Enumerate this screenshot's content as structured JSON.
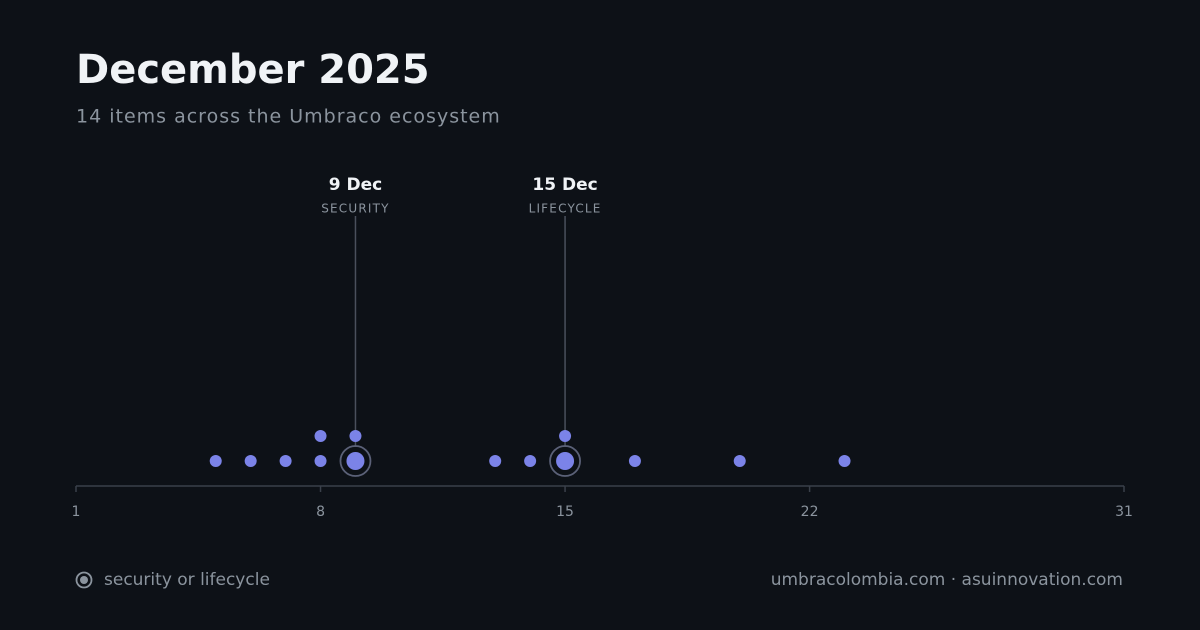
{
  "chart_data": {
    "type": "strip",
    "title": "December 2025",
    "subtitle": "14 items across the Umbraco ecosystem",
    "x": [
      5,
      6,
      7,
      8,
      8,
      9,
      9,
      13,
      14,
      15,
      15,
      17,
      20,
      23
    ],
    "highlight": [
      false,
      false,
      false,
      false,
      false,
      true,
      false,
      false,
      false,
      true,
      false,
      false,
      false,
      false
    ],
    "color": "#7b83e8",
    "xlim": [
      1,
      31
    ],
    "xticks": [
      1,
      8,
      15,
      22,
      31
    ],
    "annotations": [
      {
        "day": 9,
        "label": "9 Dec",
        "category": "SECURITY"
      },
      {
        "day": 15,
        "label": "15 Dec",
        "category": "LIFECYCLE"
      }
    ],
    "legend": "security or lifecycle",
    "footer": "umbracolombia.com · asuinnovation.com"
  }
}
